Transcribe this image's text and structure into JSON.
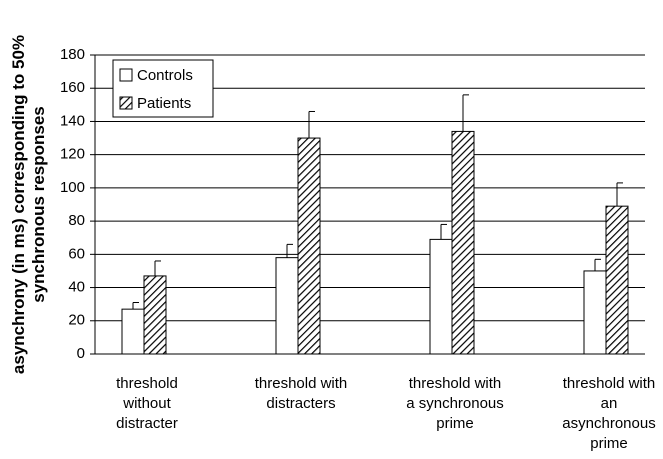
{
  "chart_data": {
    "type": "bar",
    "ylabel": [
      "asynchrony (in ms) corresponding to 50%",
      "synchronous responses"
    ],
    "categories": [
      [
        "threshold",
        "without",
        "distracter"
      ],
      [
        "threshold with",
        "distracters"
      ],
      [
        "threshold with",
        "a synchronous",
        "prime"
      ],
      [
        "threshold with",
        "an",
        "asynchronous",
        "prime"
      ]
    ],
    "series": [
      {
        "name": "Controls",
        "color": "#ffffff",
        "values": [
          27,
          58,
          69,
          50
        ],
        "errors": [
          4,
          8,
          9,
          7
        ]
      },
      {
        "name": "Patients",
        "color": "#000000",
        "pattern": "diagonal",
        "values": [
          47,
          130,
          134,
          89
        ],
        "errors": [
          9,
          16,
          22,
          14
        ]
      }
    ],
    "ylim": [
      0,
      180
    ],
    "yticks": [
      0,
      20,
      40,
      60,
      80,
      100,
      120,
      140,
      160,
      180
    ],
    "grid": true,
    "legend": "top-left"
  }
}
